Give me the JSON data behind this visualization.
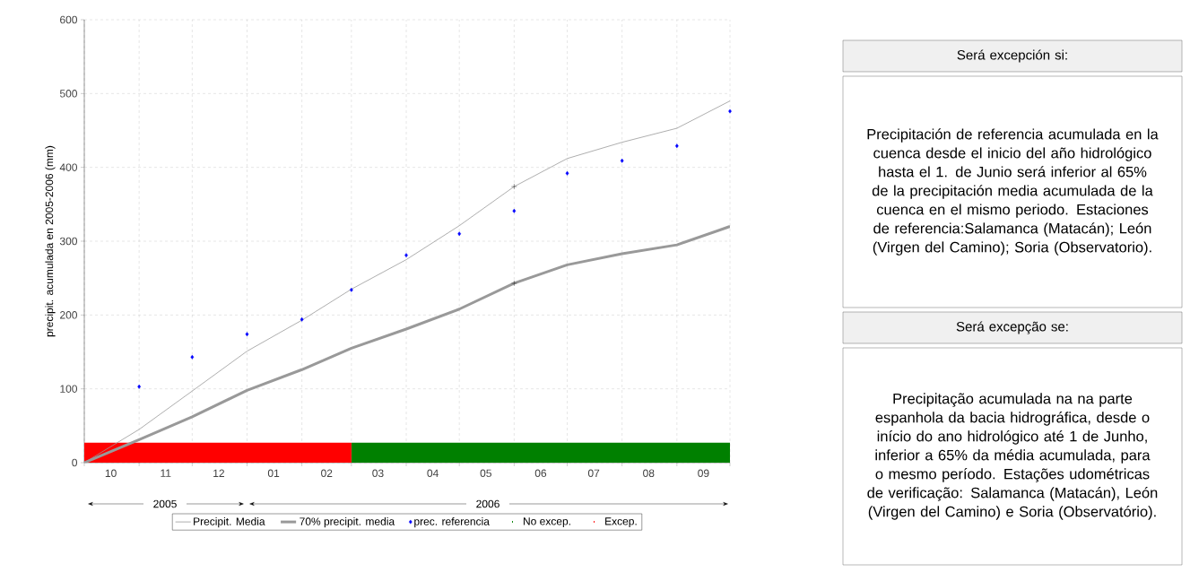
{
  "chart_data": {
    "type": "line",
    "ylabel": "precipit. acumulada en 2005-2006 (mm)",
    "x": [
      "2005-10-01",
      "2005-11-01",
      "2005-12-01",
      "2006-01-01",
      "2006-02-01",
      "2006-03-01",
      "2006-04-01",
      "2006-05-01",
      "2006-06-01",
      "2006-07-01",
      "2006-08-01",
      "2006-09-01",
      "2006-10-01"
    ],
    "series": [
      {
        "name": "Precipit. Media",
        "color": "#999999",
        "values": [
          0,
          45,
          97,
          151,
          193,
          235,
          275,
          321,
          374,
          412,
          434,
          453,
          490
        ]
      },
      {
        "name": "70% precipit. media",
        "color": "#999999",
        "values": [
          0,
          31,
          62,
          98,
          126,
          155,
          181,
          208,
          243,
          268,
          283,
          295,
          320
        ]
      },
      {
        "name": "prec. referencia",
        "type": "scatter",
        "marker": "diamond",
        "color": "#0000ff",
        "x": [
          "2005-11-01",
          "2005-12-01",
          "2006-01-01",
          "2006-02-01",
          "2006-03-01",
          "2006-04-01",
          "2006-05-01",
          "2006-06-01",
          "2006-07-01",
          "2006-08-01",
          "2006-09-01",
          "2006-10-01"
        ],
        "values": [
          103,
          143,
          174,
          194,
          234,
          281,
          310,
          341,
          392,
          409,
          429,
          476
        ]
      },
      {
        "type": "scatter",
        "marker": "cross",
        "color": "#000000",
        "x": [
          "2006-06-01",
          "2006-06-01"
        ],
        "values": [
          374,
          243
        ]
      }
    ],
    "bands": [
      {
        "axis": "x",
        "from": "2006-03-01",
        "to": "2006-10-01",
        "label": "No excep.",
        "color": "#008000"
      },
      {
        "axis": "x",
        "from": "2005-10-01",
        "to": "2006-03-01",
        "label": "Excep.",
        "color": "#ff0000"
      }
    ],
    "xlim": [
      "2005-10-01",
      "2006-10-01"
    ],
    "ylim": [
      0,
      600
    ],
    "xticks": [
      {
        "value": "2005-10-01",
        "label": null
      },
      {
        "value": "2005-11-01",
        "label": null
      },
      {
        "value": "2005-12-01",
        "label": null
      },
      {
        "value": "2006-01-01",
        "label": null
      },
      {
        "value": "2006-02-01",
        "label": null
      },
      {
        "value": "2006-03-01",
        "label": null
      },
      {
        "value": "2006-04-01",
        "label": null
      },
      {
        "value": "2006-05-01",
        "label": null
      },
      {
        "value": "2006-06-01",
        "label": null
      },
      {
        "value": "2006-07-01",
        "label": null
      },
      {
        "value": "2006-08-01",
        "label": null
      },
      {
        "value": "2006-09-01",
        "label": null
      },
      {
        "value": "2006-10-01",
        "label": null
      },
      {
        "value": "2005-10-16",
        "label": "10"
      },
      {
        "value": "2005-11-16",
        "label": "11"
      },
      {
        "value": "2005-12-16",
        "label": "12"
      },
      {
        "value": "2006-01-16",
        "label": "01"
      },
      {
        "value": "2006-02-15",
        "label": "02"
      },
      {
        "value": "2006-03-16",
        "label": "03"
      },
      {
        "value": "2006-04-16",
        "label": "04"
      },
      {
        "value": "2006-05-16",
        "label": "05"
      },
      {
        "value": "2006-06-16",
        "label": "06"
      },
      {
        "value": "2006-07-16",
        "label": "07"
      },
      {
        "value": "2006-08-16",
        "label": "08"
      },
      {
        "value": "2006-09-16",
        "label": "09"
      }
    ],
    "yticks": [
      0,
      100,
      200,
      300,
      400,
      500,
      600
    ],
    "grid": true,
    "legend": "bottom",
    "annotations": [
      "2005",
      "2006",
      "Será excepción si:",
      "Precipitación de referencia acumulada en la cuenca desde el inicio del año hidrológico hasta el 1. de Junio será inferior al 65% de la precipitación media acumulada de la cuenca en el mismo periodo. Estaciones de referencia:Salamanca (Matacán); León (Virgen del Camino); Soria (Observatorio).",
      "Será excepção se:",
      "Precipitação acumulada na na parte espanhola da bacia hidrográfica, desde o início do ano hidrológico até 1 de Junho, inferior a 65% da média acumulada, para o mesmo período. Estações udométricas de verificação: Salamanca (Matacán), León (Virgen del Camino) e Soria (Observatório)."
    ]
  }
}
